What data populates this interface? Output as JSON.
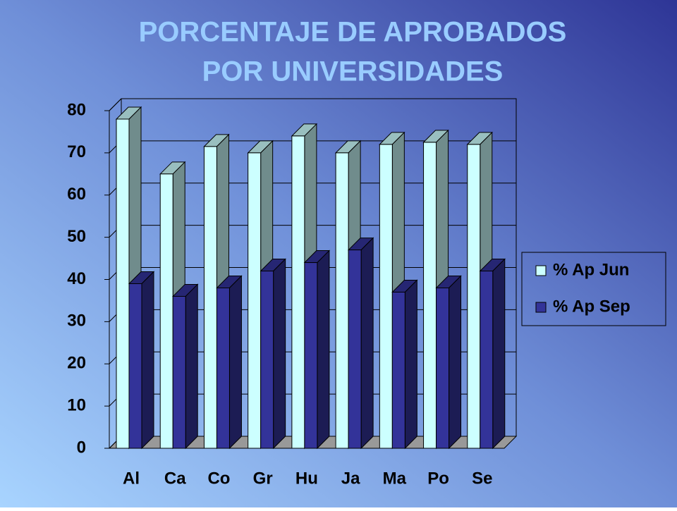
{
  "chart_data": {
    "type": "bar3d",
    "title": [
      "PORCENTAJE DE APROBADOS",
      "POR UNIVERSIDADES"
    ],
    "categories": [
      "Al",
      "Ca",
      "Co",
      "Gr",
      "Hu",
      "Ja",
      "Ma",
      "Po",
      "Se"
    ],
    "series": [
      {
        "name": "% Ap Jun",
        "color": "#ccffff",
        "values": [
          78,
          65,
          71.5,
          70,
          74,
          70,
          72,
          72.5,
          72
        ]
      },
      {
        "name": "% Ap Sep",
        "color": "#333399",
        "values": [
          39,
          36,
          38,
          42,
          44,
          47,
          37,
          38,
          42
        ]
      }
    ],
    "ylim": [
      0,
      80
    ],
    "yticks": [
      0,
      10,
      20,
      30,
      40,
      50,
      60,
      70,
      80
    ],
    "grid": true,
    "legend": "right"
  }
}
